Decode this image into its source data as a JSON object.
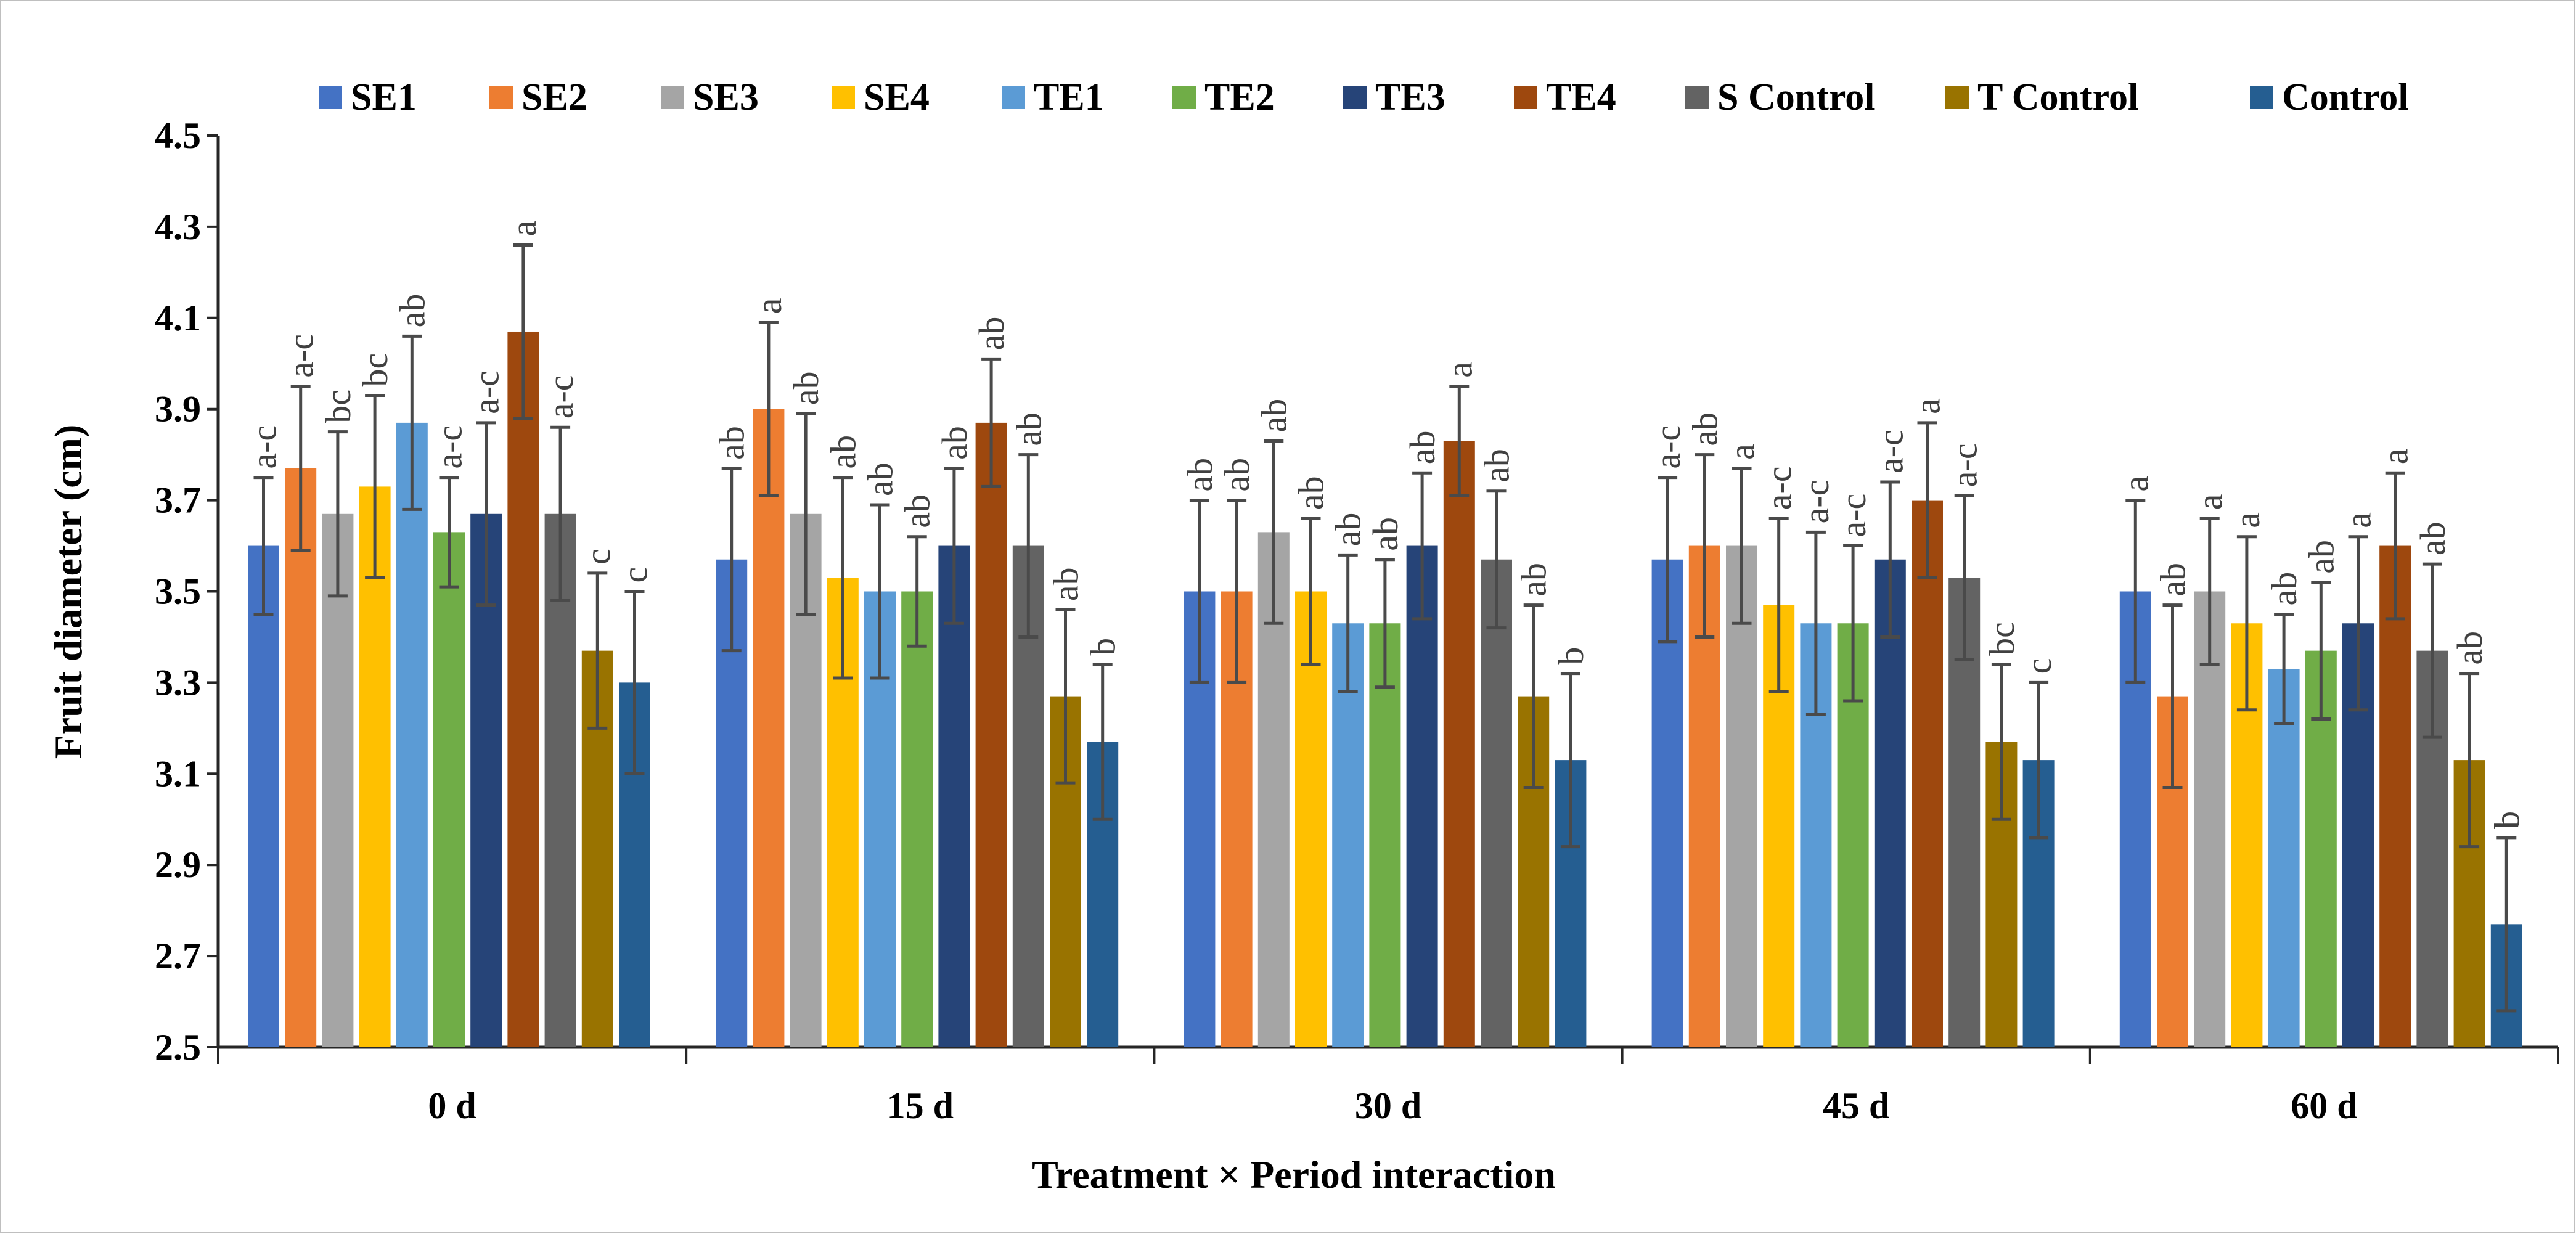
{
  "chart_data": {
    "type": "bar",
    "title": "",
    "xlabel": "Treatment × Period interaction",
    "ylabel": "Fruit diameter (cm)",
    "ylim": [
      2.5,
      4.5
    ],
    "yticks": [
      "2.5",
      "2.7",
      "2.9",
      "3.1",
      "3.3",
      "3.5",
      "3.7",
      "3.9",
      "4.1",
      "4.3",
      "4.5"
    ],
    "grid": false,
    "legend_position": "top",
    "categories": [
      "0 d",
      "15 d",
      "30 d",
      "45 d",
      "60 d"
    ],
    "series": [
      {
        "name": "SE1",
        "color": "#4472C4",
        "values": [
          3.6,
          3.57,
          3.5,
          3.57,
          3.5
        ],
        "errors": [
          0.15,
          0.2,
          0.2,
          0.18,
          0.2
        ],
        "letters": [
          "a-c",
          "ab",
          "ab",
          "a-c",
          "a"
        ]
      },
      {
        "name": "SE2",
        "color": "#ED7D31",
        "values": [
          3.77,
          3.9,
          3.5,
          3.6,
          3.27
        ],
        "errors": [
          0.18,
          0.19,
          0.2,
          0.2,
          0.2
        ],
        "letters": [
          "a-c",
          "a",
          "ab",
          "ab",
          "ab"
        ]
      },
      {
        "name": "SE3",
        "color": "#A5A5A5",
        "values": [
          3.67,
          3.67,
          3.63,
          3.6,
          3.5
        ],
        "errors": [
          0.18,
          0.22,
          0.2,
          0.17,
          0.16
        ],
        "letters": [
          "bc",
          "ab",
          "ab",
          "a",
          "a"
        ]
      },
      {
        "name": "SE4",
        "color": "#FFC000",
        "values": [
          3.73,
          3.53,
          3.5,
          3.47,
          3.43
        ],
        "errors": [
          0.2,
          0.22,
          0.16,
          0.19,
          0.19
        ],
        "letters": [
          "bc",
          "ab",
          "ab",
          "a-c",
          "a"
        ]
      },
      {
        "name": "TE1",
        "color": "#5B9BD5",
        "values": [
          3.87,
          3.5,
          3.43,
          3.43,
          3.33
        ],
        "errors": [
          0.19,
          0.19,
          0.15,
          0.2,
          0.12
        ],
        "letters": [
          "ab",
          "ab",
          "ab",
          "a-c",
          "ab"
        ]
      },
      {
        "name": "TE2",
        "color": "#70AD47",
        "values": [
          3.63,
          3.5,
          3.43,
          3.43,
          3.37
        ],
        "errors": [
          0.12,
          0.12,
          0.14,
          0.17,
          0.15
        ],
        "letters": [
          "a-c",
          "ab",
          "ab",
          "a-c",
          "ab"
        ]
      },
      {
        "name": "TE3",
        "color": "#264478",
        "values": [
          3.67,
          3.6,
          3.6,
          3.57,
          3.43
        ],
        "errors": [
          0.2,
          0.17,
          0.16,
          0.17,
          0.19
        ],
        "letters": [
          "a-c",
          "ab",
          "ab",
          "a-c",
          "a"
        ]
      },
      {
        "name": "TE4",
        "color": "#9E480E",
        "values": [
          4.07,
          3.87,
          3.83,
          3.7,
          3.6
        ],
        "errors": [
          0.19,
          0.14,
          0.12,
          0.17,
          0.16
        ],
        "letters": [
          "a",
          "ab",
          "a",
          "a",
          "a"
        ]
      },
      {
        "name": "S Control",
        "color": "#636363",
        "values": [
          3.67,
          3.6,
          3.57,
          3.53,
          3.37
        ],
        "errors": [
          0.19,
          0.2,
          0.15,
          0.18,
          0.19
        ],
        "letters": [
          "a-c",
          "ab",
          "ab",
          "a-c",
          "ab"
        ]
      },
      {
        "name": "T Control",
        "color": "#997300",
        "values": [
          3.37,
          3.27,
          3.27,
          3.17,
          3.13
        ],
        "errors": [
          0.17,
          0.19,
          0.2,
          0.17,
          0.19
        ],
        "letters": [
          "c",
          "ab",
          "ab",
          "bc",
          "ab"
        ]
      },
      {
        "name": "Control",
        "color": "#255E91",
        "values": [
          3.3,
          3.17,
          3.13,
          3.13,
          2.77
        ],
        "errors": [
          0.2,
          0.17,
          0.19,
          0.17,
          0.19
        ],
        "letters": [
          "c",
          "b",
          "b",
          "c",
          "b"
        ]
      }
    ]
  }
}
